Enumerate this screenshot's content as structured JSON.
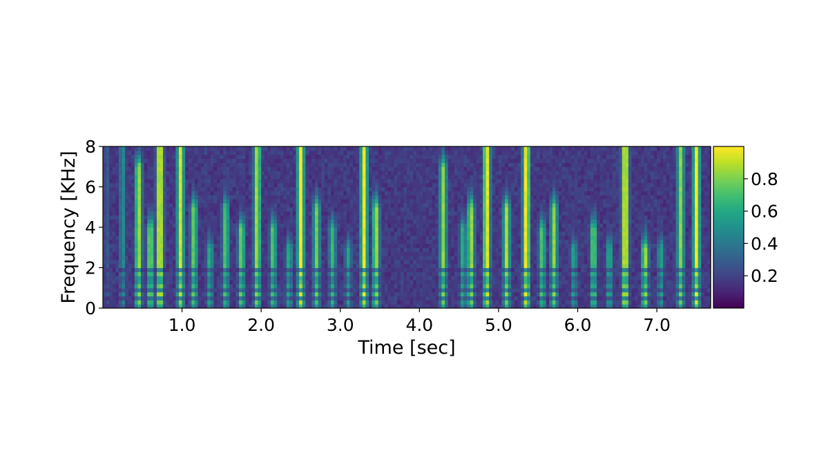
{
  "chart_data": {
    "type": "heatmap",
    "title": "",
    "xlabel": "Time [sec]",
    "ylabel": "Frequency [KHz]",
    "xlim": [
      0.0,
      7.68
    ],
    "ylim": [
      0,
      8
    ],
    "x_ticks": [
      "1.0",
      "2.0",
      "3.0",
      "4.0",
      "5.0",
      "6.0",
      "7.0"
    ],
    "y_ticks": [
      "0",
      "2",
      "4",
      "6",
      "8"
    ],
    "colormap": "viridis",
    "colorbar": {
      "range": [
        0.0,
        1.0
      ],
      "ticks": [
        "0.2",
        "0.4",
        "0.6",
        "0.8"
      ]
    },
    "grid": false,
    "columns": [
      {
        "t": 0.05,
        "energy": 0.25,
        "f_max": 8
      },
      {
        "t": 0.25,
        "energy": 0.45,
        "f_max": 8
      },
      {
        "t": 0.45,
        "energy": 0.85,
        "f_max": 7
      },
      {
        "t": 0.6,
        "energy": 0.8,
        "f_max": 4
      },
      {
        "t": 0.72,
        "energy": 0.98,
        "f_max": 8
      },
      {
        "t": 0.98,
        "energy": 0.9,
        "f_max": 8
      },
      {
        "t": 1.15,
        "energy": 0.75,
        "f_max": 5
      },
      {
        "t": 1.35,
        "energy": 0.6,
        "f_max": 3
      },
      {
        "t": 1.55,
        "energy": 0.7,
        "f_max": 5
      },
      {
        "t": 1.75,
        "energy": 0.75,
        "f_max": 4
      },
      {
        "t": 1.95,
        "energy": 0.85,
        "f_max": 8
      },
      {
        "t": 2.15,
        "energy": 0.7,
        "f_max": 4
      },
      {
        "t": 2.35,
        "energy": 0.6,
        "f_max": 3
      },
      {
        "t": 2.5,
        "energy": 0.97,
        "f_max": 8
      },
      {
        "t": 2.7,
        "energy": 0.75,
        "f_max": 5
      },
      {
        "t": 2.9,
        "energy": 0.65,
        "f_max": 4
      },
      {
        "t": 3.1,
        "energy": 0.55,
        "f_max": 3
      },
      {
        "t": 3.3,
        "energy": 0.95,
        "f_max": 8
      },
      {
        "t": 3.45,
        "energy": 0.85,
        "f_max": 5
      },
      {
        "t": 3.7,
        "energy": 0.2,
        "f_max": 2
      },
      {
        "t": 4.0,
        "energy": 0.15,
        "f_max": 2
      },
      {
        "t": 4.3,
        "energy": 0.8,
        "f_max": 7
      },
      {
        "t": 4.55,
        "energy": 0.6,
        "f_max": 4
      },
      {
        "t": 4.65,
        "energy": 0.85,
        "f_max": 5
      },
      {
        "t": 4.85,
        "energy": 0.97,
        "f_max": 8
      },
      {
        "t": 5.1,
        "energy": 0.85,
        "f_max": 5
      },
      {
        "t": 5.35,
        "energy": 0.98,
        "f_max": 8
      },
      {
        "t": 5.55,
        "energy": 0.7,
        "f_max": 4
      },
      {
        "t": 5.7,
        "energy": 0.8,
        "f_max": 5
      },
      {
        "t": 5.95,
        "energy": 0.55,
        "f_max": 3
      },
      {
        "t": 6.2,
        "energy": 0.75,
        "f_max": 4
      },
      {
        "t": 6.4,
        "energy": 0.6,
        "f_max": 3
      },
      {
        "t": 6.6,
        "energy": 0.98,
        "f_max": 8
      },
      {
        "t": 6.85,
        "energy": 0.85,
        "f_max": 3
      },
      {
        "t": 7.05,
        "energy": 0.55,
        "f_max": 3
      },
      {
        "t": 7.3,
        "energy": 0.8,
        "f_max": 8
      },
      {
        "t": 7.5,
        "energy": 0.97,
        "f_max": 8
      }
    ]
  }
}
